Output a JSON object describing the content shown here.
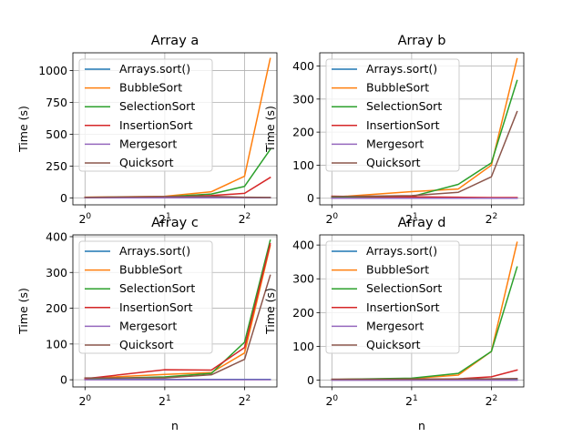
{
  "chart_data": [
    {
      "type": "line",
      "title": "Array a",
      "xlabel": "",
      "ylabel": "Time (s)",
      "xscale": "log2",
      "xlim": [
        0.9,
        5.3
      ],
      "ylim": [
        -55,
        1140
      ],
      "x": [
        1,
        2,
        3,
        4,
        5
      ],
      "xticks": [
        {
          "value": 1,
          "base": "2",
          "exp": "0"
        },
        {
          "value": 2,
          "base": "2",
          "exp": "1"
        },
        {
          "value": 4,
          "base": "2",
          "exp": "2"
        }
      ],
      "yticks": [
        {
          "value": 0,
          "label": "0"
        },
        {
          "value": 250,
          "label": "250"
        },
        {
          "value": 500,
          "label": "500"
        },
        {
          "value": 750,
          "label": "750"
        },
        {
          "value": 1000,
          "label": "1000"
        }
      ],
      "legend_position": "upper-left",
      "series": [
        {
          "name": "Arrays.sort()",
          "color": "#1f77b4",
          "values": [
            1,
            1,
            1,
            1,
            1
          ]
        },
        {
          "name": "BubbleSort",
          "color": "#ff7f0e",
          "values": [
            5,
            12,
            48,
            170,
            1095
          ]
        },
        {
          "name": "SelectionSort",
          "color": "#2ca02c",
          "values": [
            3,
            8,
            30,
            90,
            380
          ]
        },
        {
          "name": "InsertionSort",
          "color": "#d62728",
          "values": [
            2,
            5,
            18,
            35,
            160
          ]
        },
        {
          "name": "Mergesort",
          "color": "#9467bd",
          "values": [
            0,
            0,
            1,
            1,
            1
          ]
        },
        {
          "name": "Quicksort",
          "color": "#8c564b",
          "values": [
            4,
            10,
            12,
            5,
            3
          ]
        }
      ]
    },
    {
      "type": "line",
      "title": "Array b",
      "xlabel": "",
      "ylabel": "Time (s)",
      "xscale": "log2",
      "xlim": [
        0.9,
        5.3
      ],
      "ylim": [
        -20,
        440
      ],
      "x": [
        1,
        2,
        3,
        4,
        5
      ],
      "xticks": [
        {
          "value": 1,
          "base": "2",
          "exp": "0"
        },
        {
          "value": 2,
          "base": "2",
          "exp": "1"
        },
        {
          "value": 4,
          "base": "2",
          "exp": "2"
        }
      ],
      "yticks": [
        {
          "value": 0,
          "label": "0"
        },
        {
          "value": 100,
          "label": "100"
        },
        {
          "value": 200,
          "label": "200"
        },
        {
          "value": 300,
          "label": "300"
        },
        {
          "value": 400,
          "label": "400"
        }
      ],
      "legend_position": "upper-left",
      "series": [
        {
          "name": "Arrays.sort()",
          "color": "#1f77b4",
          "values": [
            1,
            1,
            1,
            1,
            1
          ]
        },
        {
          "name": "BubbleSort",
          "color": "#ff7f0e",
          "values": [
            3,
            20,
            28,
            100,
            422
          ]
        },
        {
          "name": "SelectionSort",
          "color": "#2ca02c",
          "values": [
            2,
            5,
            42,
            107,
            356
          ]
        },
        {
          "name": "InsertionSort",
          "color": "#d62728",
          "values": [
            6,
            4,
            3,
            2,
            2
          ]
        },
        {
          "name": "Mergesort",
          "color": "#9467bd",
          "values": [
            0,
            0,
            0,
            0,
            0
          ]
        },
        {
          "name": "Quicksort",
          "color": "#8c564b",
          "values": [
            5,
            8,
            18,
            65,
            262
          ]
        }
      ]
    },
    {
      "type": "line",
      "title": "Array c",
      "xlabel": "n",
      "ylabel": "Time (s)",
      "xscale": "log2",
      "xlim": [
        0.9,
        5.3
      ],
      "ylim": [
        -20,
        405
      ],
      "x": [
        1,
        2,
        3,
        4,
        5
      ],
      "xticks": [
        {
          "value": 1,
          "base": "2",
          "exp": "0"
        },
        {
          "value": 2,
          "base": "2",
          "exp": "1"
        },
        {
          "value": 4,
          "base": "2",
          "exp": "2"
        }
      ],
      "yticks": [
        {
          "value": 0,
          "label": "0"
        },
        {
          "value": 100,
          "label": "100"
        },
        {
          "value": 200,
          "label": "200"
        },
        {
          "value": 300,
          "label": "300"
        },
        {
          "value": 400,
          "label": "400"
        }
      ],
      "legend_position": "upper-left",
      "series": [
        {
          "name": "Arrays.sort()",
          "color": "#1f77b4",
          "values": [
            1,
            1,
            1,
            1,
            1
          ]
        },
        {
          "name": "BubbleSort",
          "color": "#ff7f0e",
          "values": [
            4,
            15,
            20,
            75,
            375
          ]
        },
        {
          "name": "SelectionSort",
          "color": "#2ca02c",
          "values": [
            3,
            8,
            18,
            105,
            390
          ]
        },
        {
          "name": "InsertionSort",
          "color": "#d62728",
          "values": [
            3,
            28,
            27,
            90,
            380
          ]
        },
        {
          "name": "Mergesort",
          "color": "#9467bd",
          "values": [
            0,
            0,
            0,
            0,
            0
          ]
        },
        {
          "name": "Quicksort",
          "color": "#8c564b",
          "values": [
            5,
            5,
            14,
            57,
            292
          ]
        }
      ]
    },
    {
      "type": "line",
      "title": "Array d",
      "xlabel": "n",
      "ylabel": "Time (s)",
      "xscale": "log2",
      "xlim": [
        0.9,
        5.3
      ],
      "ylim": [
        -20,
        430
      ],
      "x": [
        1,
        2,
        3,
        4,
        5
      ],
      "xticks": [
        {
          "value": 1,
          "base": "2",
          "exp": "0"
        },
        {
          "value": 2,
          "base": "2",
          "exp": "1"
        },
        {
          "value": 4,
          "base": "2",
          "exp": "2"
        }
      ],
      "yticks": [
        {
          "value": 0,
          "label": "0"
        },
        {
          "value": 100,
          "label": "100"
        },
        {
          "value": 200,
          "label": "200"
        },
        {
          "value": 300,
          "label": "300"
        },
        {
          "value": 400,
          "label": "400"
        }
      ],
      "legend_position": "upper-left",
      "series": [
        {
          "name": "Arrays.sort()",
          "color": "#1f77b4",
          "values": [
            1,
            1,
            1,
            1,
            1
          ]
        },
        {
          "name": "BubbleSort",
          "color": "#ff7f0e",
          "values": [
            2,
            5,
            15,
            85,
            408
          ]
        },
        {
          "name": "SelectionSort",
          "color": "#2ca02c",
          "values": [
            2,
            6,
            20,
            85,
            335
          ]
        },
        {
          "name": "InsertionSort",
          "color": "#d62728",
          "values": [
            1,
            3,
            4,
            10,
            30
          ]
        },
        {
          "name": "Mergesort",
          "color": "#9467bd",
          "values": [
            0,
            0,
            0,
            0,
            0
          ]
        },
        {
          "name": "Quicksort",
          "color": "#8c564b",
          "values": [
            3,
            3,
            4,
            4,
            5
          ]
        }
      ]
    }
  ]
}
